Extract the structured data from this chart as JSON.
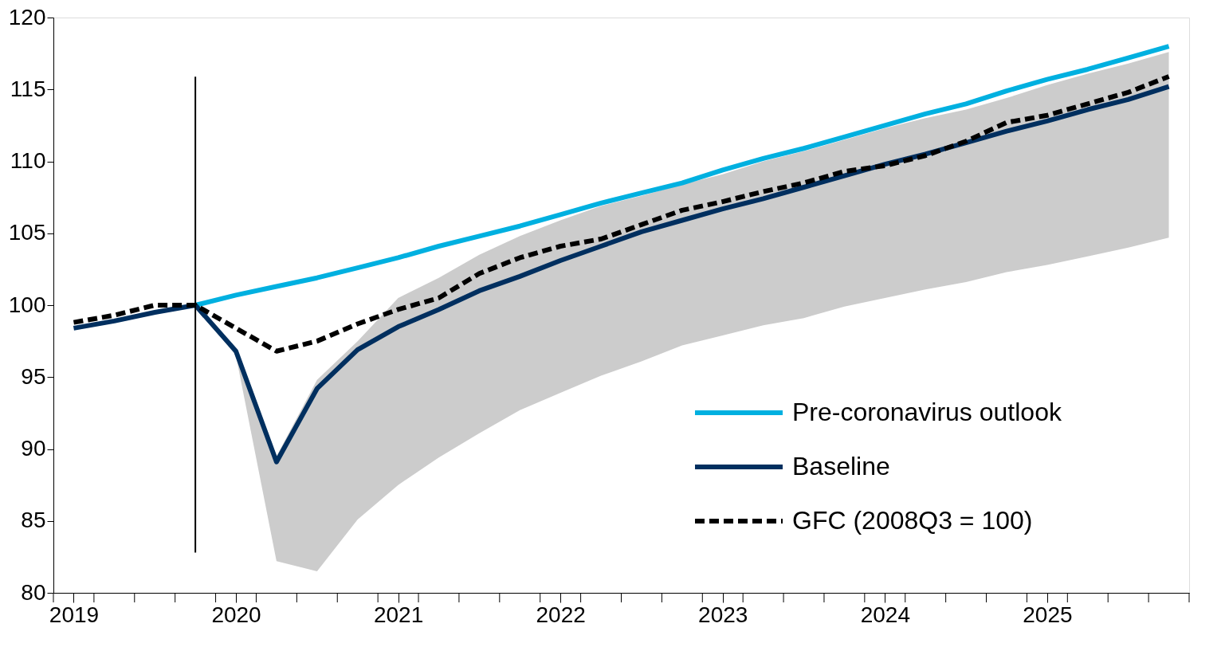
{
  "chart_data": {
    "type": "line",
    "x": [
      2019.0,
      2019.25,
      2019.5,
      2019.75,
      2020.0,
      2020.25,
      2020.5,
      2020.75,
      2021.0,
      2021.25,
      2021.5,
      2021.75,
      2022.0,
      2022.25,
      2022.5,
      2022.75,
      2023.0,
      2023.25,
      2023.5,
      2023.75,
      2024.0,
      2024.25,
      2024.5,
      2024.75,
      2025.0,
      2025.25,
      2025.5,
      2025.75
    ],
    "xlim": [
      2018.875,
      2025.875
    ],
    "xticks": [
      2019,
      2020,
      2021,
      2022,
      2023,
      2024,
      2025
    ],
    "ylim": [
      80,
      120
    ],
    "yticks": [
      80,
      85,
      90,
      95,
      100,
      105,
      110,
      115,
      120
    ],
    "grid": false,
    "legend": "bottom right",
    "marker": "none",
    "ref_lines": [
      {
        "axis": "x",
        "value": 2019.75,
        "color": "#000000",
        "line_style": "solid"
      }
    ],
    "series": [
      {
        "name": "Pre-coronavirus outlook",
        "color": "#00b0e0",
        "line_style": "solid",
        "values": [
          null,
          null,
          null,
          100.0,
          100.7,
          101.3,
          101.9,
          102.6,
          103.3,
          104.1,
          104.8,
          105.5,
          106.3,
          107.1,
          107.8,
          108.5,
          109.4,
          110.2,
          110.9,
          111.7,
          112.5,
          113.3,
          114.0,
          114.9,
          115.7,
          116.4,
          117.2,
          118.0
        ]
      },
      {
        "name": "Baseline",
        "color": "#002f5f",
        "line_style": "solid",
        "values": [
          98.4,
          98.9,
          99.5,
          100.0,
          96.8,
          89.1,
          94.2,
          96.9,
          98.5,
          99.7,
          101.0,
          102.0,
          103.1,
          104.1,
          105.1,
          105.9,
          106.7,
          107.4,
          108.2,
          109.0,
          109.8,
          110.5,
          111.3,
          112.1,
          112.8,
          113.6,
          114.3,
          115.2
        ],
        "lower": [
          null,
          null,
          null,
          100.0,
          96.5,
          82.2,
          81.5,
          85.1,
          87.5,
          89.4,
          91.1,
          92.7,
          93.9,
          95.1,
          96.1,
          97.2,
          97.9,
          98.6,
          99.1,
          99.9,
          100.5,
          101.1,
          101.6,
          102.3,
          102.8,
          103.4,
          104.0,
          104.7
        ],
        "upper": [
          null,
          null,
          null,
          100.0,
          96.8,
          89.5,
          94.8,
          97.5,
          100.5,
          101.9,
          103.5,
          104.8,
          105.9,
          106.9,
          107.6,
          108.4,
          109.1,
          110.0,
          110.7,
          111.5,
          112.3,
          113.0,
          113.6,
          114.4,
          115.3,
          116.1,
          116.8,
          117.6
        ]
      },
      {
        "name": "GFC (2008Q3 = 100)",
        "color": "#000000",
        "line_style": "dashed",
        "values": [
          98.8,
          99.3,
          100.0,
          100.0,
          98.4,
          96.8,
          97.5,
          98.7,
          99.7,
          100.5,
          102.2,
          103.3,
          104.1,
          104.6,
          105.6,
          106.6,
          107.2,
          107.9,
          108.5,
          109.3,
          109.7,
          110.4,
          111.4,
          112.7,
          113.2,
          114.0,
          114.8,
          115.9
        ]
      }
    ]
  }
}
